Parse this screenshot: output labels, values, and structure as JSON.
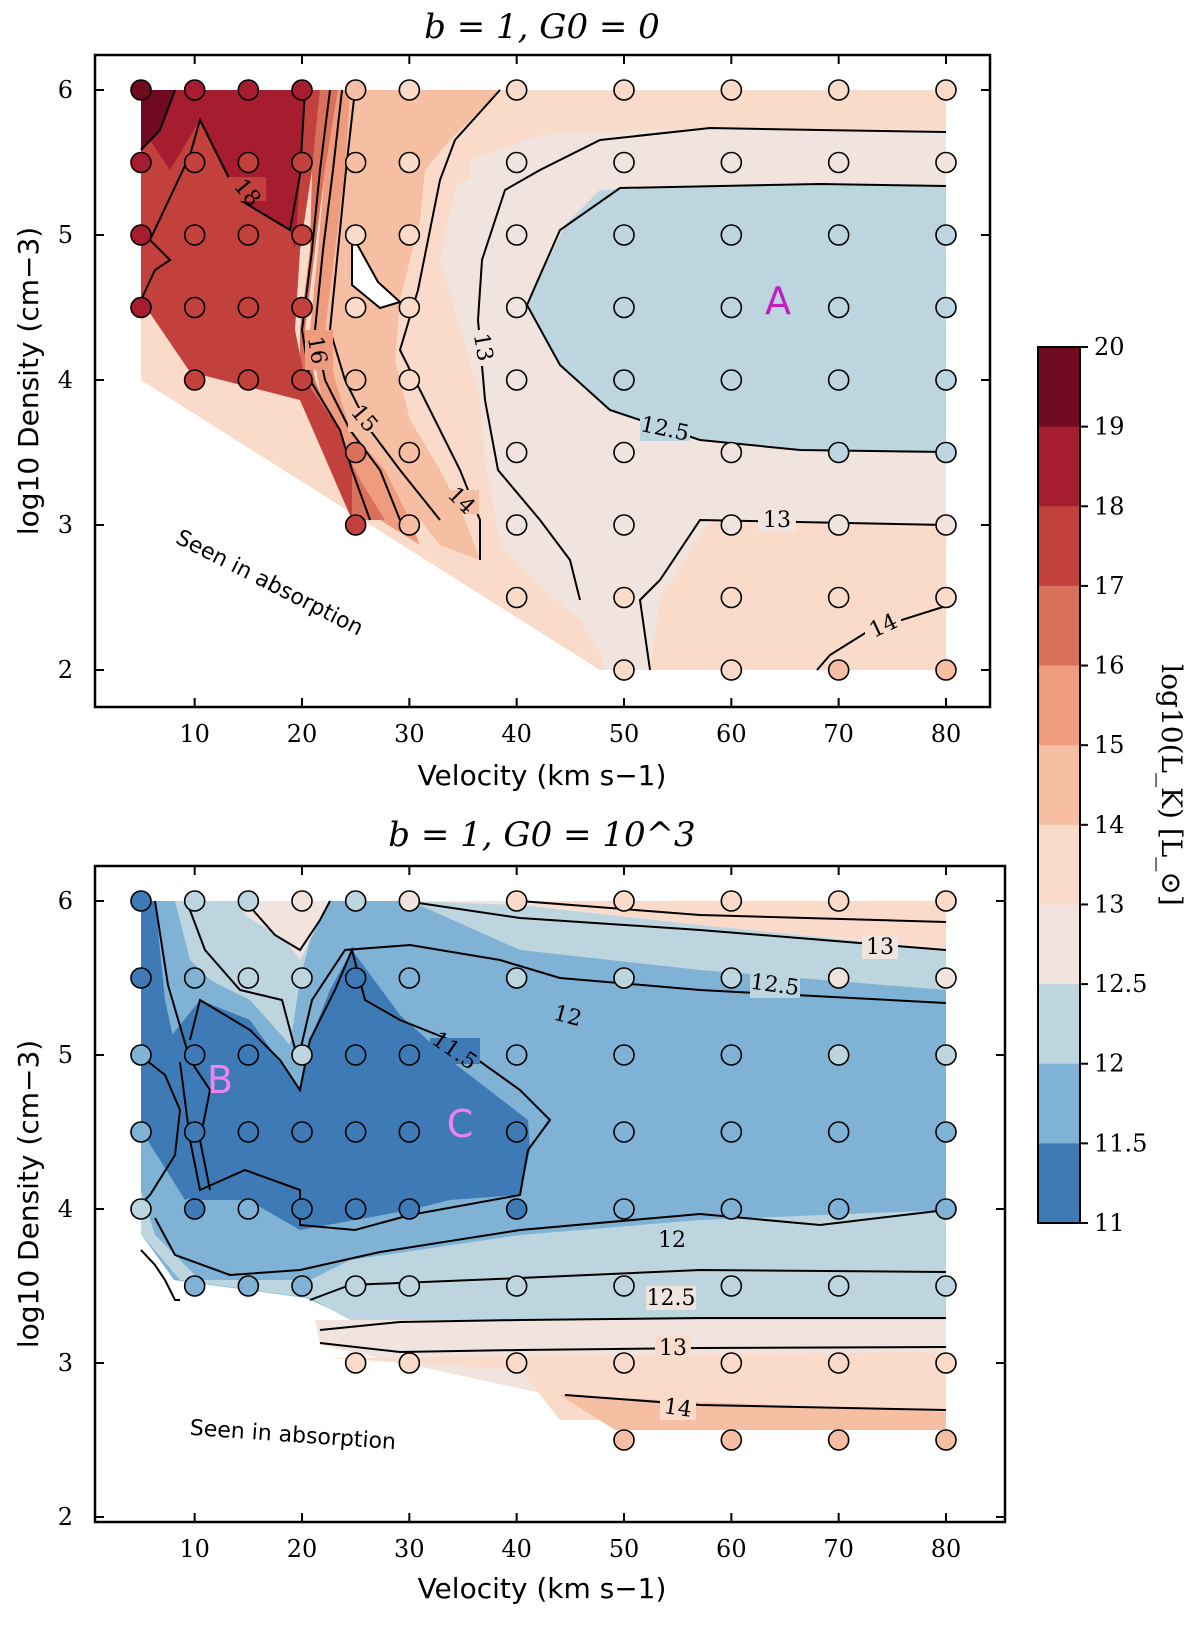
{
  "figure": {
    "colorbar": {
      "label": "log10(L_K) [L_⊙]",
      "ticks": [
        "20",
        "19",
        "18",
        "17",
        "16",
        "15",
        "14",
        "13",
        "12.5",
        "12",
        "11.5",
        "11"
      ],
      "colors": [
        "#6f0a21",
        "#a51d2e",
        "#c2413c",
        "#d9705a",
        "#ee9b7e",
        "#f6bfa3",
        "#fadbc9",
        "#f1e3de",
        "#bcd5df",
        "#7fb2d5",
        "#3e7bb6"
      ]
    }
  },
  "chart_data": [
    {
      "type": "contour",
      "title": "b = 1, G0 = 0",
      "xlabel": "Velocity (km s−1)",
      "ylabel": "log10 Density (cm−3)",
      "xlim": [
        0,
        83
      ],
      "ylim": [
        1.7,
        6.25
      ],
      "xticks": [
        "10",
        "20",
        "30",
        "40",
        "50",
        "60",
        "70",
        "80"
      ],
      "yticks": [
        "2",
        "3",
        "4",
        "5",
        "6"
      ],
      "contour_labels": [
        "18",
        "16",
        "15",
        "14",
        "13",
        "12.5",
        "13",
        "14"
      ],
      "region_label": "A",
      "annotation": "Seen in absorption",
      "grid_points": [
        [
          5,
          6,
          19.5
        ],
        [
          10,
          6,
          18.5
        ],
        [
          15,
          6,
          18.5
        ],
        [
          20,
          6,
          18.5
        ],
        [
          25,
          6,
          14.5
        ],
        [
          30,
          6,
          13.5
        ],
        [
          40,
          6,
          13.5
        ],
        [
          50,
          6,
          13.5
        ],
        [
          60,
          6,
          13.5
        ],
        [
          70,
          6,
          13.5
        ],
        [
          80,
          6,
          13.5
        ],
        [
          5,
          5.5,
          18.5
        ],
        [
          10,
          5.5,
          17.5
        ],
        [
          15,
          5.5,
          17.5
        ],
        [
          20,
          5.5,
          17.5
        ],
        [
          25,
          5.5,
          14.5
        ],
        [
          30,
          5.5,
          13.5
        ],
        [
          40,
          5.5,
          12.8
        ],
        [
          50,
          5.5,
          12.8
        ],
        [
          60,
          5.5,
          12.8
        ],
        [
          70,
          5.5,
          12.8
        ],
        [
          80,
          5.5,
          12.8
        ],
        [
          5,
          5,
          18.5
        ],
        [
          10,
          5,
          17.5
        ],
        [
          15,
          5,
          17.5
        ],
        [
          20,
          5,
          17.5
        ],
        [
          25,
          5,
          13.5
        ],
        [
          30,
          5,
          13.5
        ],
        [
          40,
          5,
          12.8
        ],
        [
          50,
          5,
          12.3
        ],
        [
          60,
          5,
          12.3
        ],
        [
          70,
          5,
          12.3
        ],
        [
          80,
          5,
          12.3
        ],
        [
          5,
          4.5,
          18.5
        ],
        [
          10,
          4.5,
          17.5
        ],
        [
          15,
          4.5,
          17.5
        ],
        [
          20,
          4.5,
          17.5
        ],
        [
          25,
          4.5,
          13.5
        ],
        [
          30,
          4.5,
          13.5
        ],
        [
          40,
          4.5,
          12.8
        ],
        [
          50,
          4.5,
          12.3
        ],
        [
          60,
          4.5,
          12.3
        ],
        [
          70,
          4.5,
          12.3
        ],
        [
          80,
          4.5,
          12.3
        ],
        [
          10,
          4,
          17.5
        ],
        [
          15,
          4,
          17.5
        ],
        [
          20,
          4,
          17.5
        ],
        [
          25,
          4,
          14.5
        ],
        [
          30,
          4,
          13.5
        ],
        [
          40,
          4,
          12.8
        ],
        [
          50,
          4,
          12.3
        ],
        [
          60,
          4,
          12.3
        ],
        [
          70,
          4,
          12.3
        ],
        [
          80,
          4,
          12.3
        ],
        [
          25,
          3.5,
          16.5
        ],
        [
          30,
          3.5,
          14.5
        ],
        [
          40,
          3.5,
          12.8
        ],
        [
          50,
          3.5,
          12.8
        ],
        [
          60,
          3.5,
          12.8
        ],
        [
          70,
          3.5,
          12.3
        ],
        [
          80,
          3.5,
          12.3
        ],
        [
          25,
          3,
          17.5
        ],
        [
          30,
          3,
          14.5
        ],
        [
          40,
          3,
          12.8
        ],
        [
          50,
          3,
          12.8
        ],
        [
          60,
          3,
          12.8
        ],
        [
          70,
          3,
          12.8
        ],
        [
          80,
          3,
          12.8
        ],
        [
          40,
          2.5,
          13.5
        ],
        [
          50,
          2.5,
          13.5
        ],
        [
          60,
          2.5,
          13.5
        ],
        [
          70,
          2.5,
          13.5
        ],
        [
          80,
          2.5,
          13.5
        ],
        [
          50,
          2,
          13.5
        ],
        [
          60,
          2,
          13.5
        ],
        [
          70,
          2,
          14.5
        ],
        [
          80,
          2,
          14.5
        ]
      ]
    },
    {
      "type": "contour",
      "title": "b = 1, G0 = 10^3",
      "xlabel": "Velocity (km s−1)",
      "ylabel": "log10 Density (cm−3)",
      "xlim": [
        0,
        84
      ],
      "ylim": [
        2,
        6.28
      ],
      "xticks": [
        "10",
        "20",
        "30",
        "40",
        "50",
        "60",
        "70",
        "80"
      ],
      "yticks": [
        "2",
        "3",
        "4",
        "5",
        "6"
      ],
      "contour_labels": [
        "13",
        "12.5",
        "12",
        "11.5",
        "12",
        "12.5",
        "13",
        "14"
      ],
      "region_labels": [
        "B",
        "C"
      ],
      "annotation": "Seen in absorption",
      "grid_points": [
        [
          5,
          6,
          11.3
        ],
        [
          10,
          6,
          12.3
        ],
        [
          15,
          6,
          12.3
        ],
        [
          20,
          6,
          12.8
        ],
        [
          25,
          6,
          12.3
        ],
        [
          30,
          6,
          12.8
        ],
        [
          40,
          6,
          13.5
        ],
        [
          50,
          6,
          13.5
        ],
        [
          60,
          6,
          13.5
        ],
        [
          70,
          6,
          13.5
        ],
        [
          80,
          6,
          13.5
        ],
        [
          5,
          5.5,
          11.3
        ],
        [
          10,
          5.5,
          11.8
        ],
        [
          15,
          5.5,
          12.3
        ],
        [
          20,
          5.5,
          12.3
        ],
        [
          25,
          5.5,
          11.3
        ],
        [
          30,
          5.5,
          11.8
        ],
        [
          40,
          5.5,
          12.3
        ],
        [
          50,
          5.5,
          12.3
        ],
        [
          60,
          5.5,
          12.3
        ],
        [
          70,
          5.5,
          12.8
        ],
        [
          80,
          5.5,
          12.8
        ],
        [
          5,
          5,
          11.8
        ],
        [
          10,
          5,
          11.3
        ],
        [
          15,
          5,
          11.3
        ],
        [
          20,
          5,
          12.3
        ],
        [
          25,
          5,
          11.3
        ],
        [
          30,
          5,
          11.3
        ],
        [
          40,
          5,
          11.8
        ],
        [
          50,
          5,
          11.8
        ],
        [
          60,
          5,
          11.8
        ],
        [
          70,
          5,
          12.3
        ],
        [
          80,
          5,
          12.3
        ],
        [
          5,
          4.5,
          11.8
        ],
        [
          10,
          4.5,
          11.3
        ],
        [
          15,
          4.5,
          11.3
        ],
        [
          20,
          4.5,
          11.3
        ],
        [
          25,
          4.5,
          11.3
        ],
        [
          30,
          4.5,
          11.3
        ],
        [
          40,
          4.5,
          11.3
        ],
        [
          50,
          4.5,
          11.8
        ],
        [
          60,
          4.5,
          11.8
        ],
        [
          70,
          4.5,
          11.8
        ],
        [
          80,
          4.5,
          11.8
        ],
        [
          5,
          4,
          12.3
        ],
        [
          10,
          4,
          11.3
        ],
        [
          15,
          4,
          11.8
        ],
        [
          20,
          4,
          11.3
        ],
        [
          25,
          4,
          11.3
        ],
        [
          30,
          4,
          11.3
        ],
        [
          40,
          4,
          11.3
        ],
        [
          50,
          4,
          11.8
        ],
        [
          60,
          4,
          11.8
        ],
        [
          70,
          4,
          11.8
        ],
        [
          80,
          4,
          11.8
        ],
        [
          10,
          3.5,
          11.8
        ],
        [
          15,
          3.5,
          11.8
        ],
        [
          20,
          3.5,
          11.8
        ],
        [
          25,
          3.5,
          12.3
        ],
        [
          30,
          3.5,
          12.3
        ],
        [
          40,
          3.5,
          12.3
        ],
        [
          50,
          3.5,
          12.3
        ],
        [
          60,
          3.5,
          12.3
        ],
        [
          70,
          3.5,
          12.3
        ],
        [
          80,
          3.5,
          12.3
        ],
        [
          25,
          3,
          13.3
        ],
        [
          30,
          3,
          13.3
        ],
        [
          40,
          3,
          13.3
        ],
        [
          50,
          3,
          13.3
        ],
        [
          60,
          3,
          13.3
        ],
        [
          70,
          3,
          13.3
        ],
        [
          80,
          3,
          13.3
        ],
        [
          50,
          2.5,
          14.5
        ],
        [
          60,
          2.5,
          14.5
        ],
        [
          70,
          2.5,
          14.5
        ],
        [
          80,
          2.5,
          14.5
        ]
      ]
    }
  ]
}
